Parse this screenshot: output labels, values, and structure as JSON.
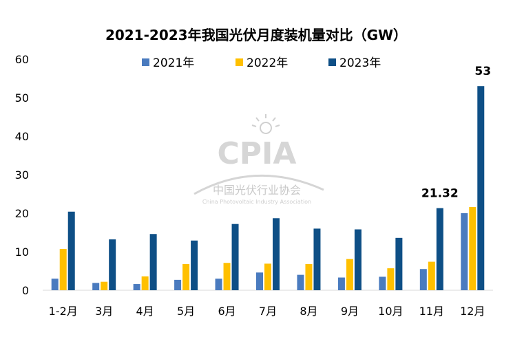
{
  "chart_data": {
    "type": "bar",
    "title": "2021-2023年我国光伏月度装机量对比（GW）",
    "categories": [
      "1-2月",
      "3月",
      "4月",
      "5月",
      "6月",
      "7月",
      "8月",
      "9月",
      "10月",
      "11月",
      "12月"
    ],
    "series": [
      {
        "name": "2021年",
        "color": "#4a7bbf",
        "values": [
          3.0,
          1.9,
          1.6,
          2.7,
          3.0,
          4.6,
          4.0,
          3.3,
          3.5,
          5.5,
          20.0
        ]
      },
      {
        "name": "2022年",
        "color": "#ffc000",
        "values": [
          10.7,
          2.2,
          3.6,
          6.8,
          7.1,
          6.9,
          6.8,
          8.1,
          5.7,
          7.4,
          21.6
        ]
      },
      {
        "name": "2023年",
        "color": "#0e4f86",
        "values": [
          20.4,
          13.2,
          14.6,
          12.9,
          17.2,
          18.7,
          16.0,
          15.8,
          13.6,
          21.32,
          53
        ]
      }
    ],
    "data_labels": [
      {
        "series": "2023年",
        "category": "11月",
        "text": "21.32"
      },
      {
        "series": "2023年",
        "category": "12月",
        "text": "53"
      }
    ],
    "ylim": [
      0,
      60
    ],
    "yticks": [
      "0",
      "10",
      "20",
      "30",
      "40",
      "50",
      "60"
    ],
    "xlabel": "",
    "ylabel": "",
    "grid": false,
    "legend": "top-center"
  },
  "watermark": {
    "logo": "CPIA",
    "name_cn": "中国光伏行业协会",
    "name_en": "China Photovoltaic Industry Association"
  }
}
